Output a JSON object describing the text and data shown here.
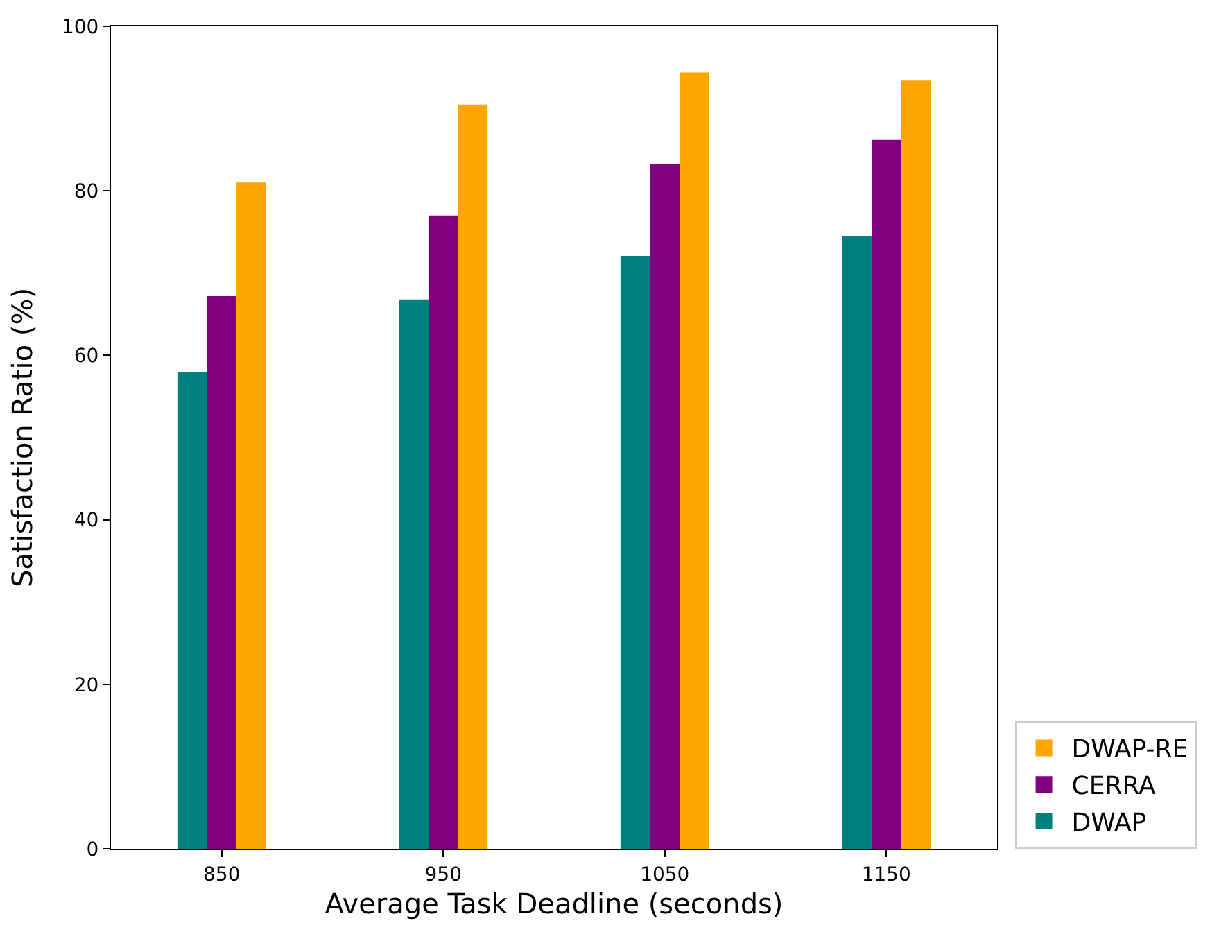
{
  "chart_data": {
    "type": "bar",
    "xlabel": "Average Task Deadline (seconds)",
    "ylabel": "Satisfaction Ratio (%)",
    "categories": [
      "850",
      "950",
      "1050",
      "1150"
    ],
    "series": [
      {
        "name": "DWAP",
        "color": "#008080",
        "values": [
          58.0,
          66.8,
          72.1,
          74.5
        ]
      },
      {
        "name": "CERRA",
        "color": "#800080",
        "values": [
          67.2,
          77.0,
          83.3,
          86.2
        ]
      },
      {
        "name": "DWAP-RE",
        "color": "#ffa500",
        "values": [
          81.0,
          90.5,
          94.4,
          93.4
        ]
      }
    ],
    "ylim": [
      0,
      100
    ],
    "yticks": [
      0,
      20,
      40,
      60,
      80,
      100
    ],
    "grid": false,
    "legend": "bottom right"
  }
}
